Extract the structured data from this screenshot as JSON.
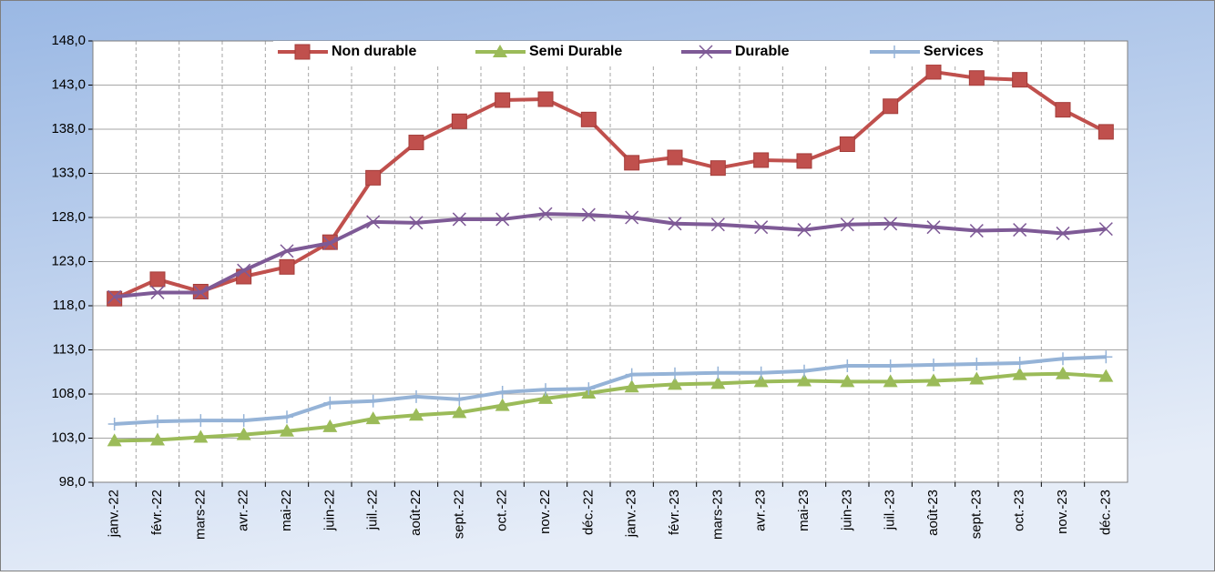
{
  "chart_data": {
    "type": "line",
    "categories": [
      "janv.-22",
      "févr.-22",
      "mars-22",
      "avr.-22",
      "mai-22",
      "juin-22",
      "juil.-22",
      "août-22",
      "sept.-22",
      "oct.-22",
      "nov.-22",
      "déc.-22",
      "janv.-23",
      "févr.-23",
      "mars-23",
      "avr.-23",
      "mai-23",
      "juin-23",
      "juil.-23",
      "août-23",
      "sept.-23",
      "oct.-23",
      "nov.-23",
      "déc.-23"
    ],
    "series": [
      {
        "name": "Non durable",
        "color": "#c0504d",
        "marker": "square",
        "values": [
          118.8,
          121.0,
          119.6,
          121.3,
          122.4,
          125.2,
          132.5,
          136.5,
          138.9,
          141.3,
          141.4,
          139.1,
          134.2,
          134.8,
          133.6,
          134.5,
          134.4,
          136.3,
          140.6,
          144.5,
          143.8,
          143.6,
          140.2,
          137.7
        ]
      },
      {
        "name": "Semi Durable",
        "color": "#9bbb59",
        "marker": "triangle",
        "values": [
          102.7,
          102.8,
          103.1,
          103.4,
          103.8,
          104.3,
          105.2,
          105.6,
          105.9,
          106.7,
          107.5,
          108.1,
          108.8,
          109.1,
          109.2,
          109.4,
          109.5,
          109.4,
          109.4,
          109.5,
          109.7,
          110.2,
          110.3,
          110.0
        ]
      },
      {
        "name": "Durable",
        "color": "#7e5a96",
        "marker": "x",
        "values": [
          119.0,
          119.5,
          119.5,
          122.0,
          124.2,
          125.1,
          127.5,
          127.4,
          127.8,
          127.8,
          128.4,
          128.3,
          128.0,
          127.3,
          127.2,
          126.9,
          126.6,
          127.2,
          127.3,
          126.9,
          126.5,
          126.6,
          126.2,
          126.7
        ]
      },
      {
        "name": "Services",
        "color": "#95b3d7",
        "marker": "plus",
        "values": [
          104.6,
          104.9,
          105.0,
          105.0,
          105.4,
          107.0,
          107.2,
          107.7,
          107.4,
          108.2,
          108.5,
          108.6,
          110.2,
          110.3,
          110.4,
          110.4,
          110.6,
          111.2,
          111.2,
          111.3,
          111.4,
          111.5,
          112.0,
          112.2
        ]
      }
    ],
    "ylim": [
      98,
      148
    ],
    "yticks": [
      {
        "value": 98,
        "label": "98,0"
      },
      {
        "value": 103,
        "label": "103,0"
      },
      {
        "value": 108,
        "label": "108,0"
      },
      {
        "value": 113,
        "label": "113,0"
      },
      {
        "value": 118,
        "label": "118,0"
      },
      {
        "value": 123,
        "label": "123,0"
      },
      {
        "value": 128,
        "label": "128,0"
      },
      {
        "value": 133,
        "label": "133,0"
      },
      {
        "value": 138,
        "label": "138,0"
      },
      {
        "value": 143,
        "label": "143,0"
      },
      {
        "value": 148,
        "label": "148,0"
      }
    ],
    "grid": true,
    "legend": "top"
  }
}
